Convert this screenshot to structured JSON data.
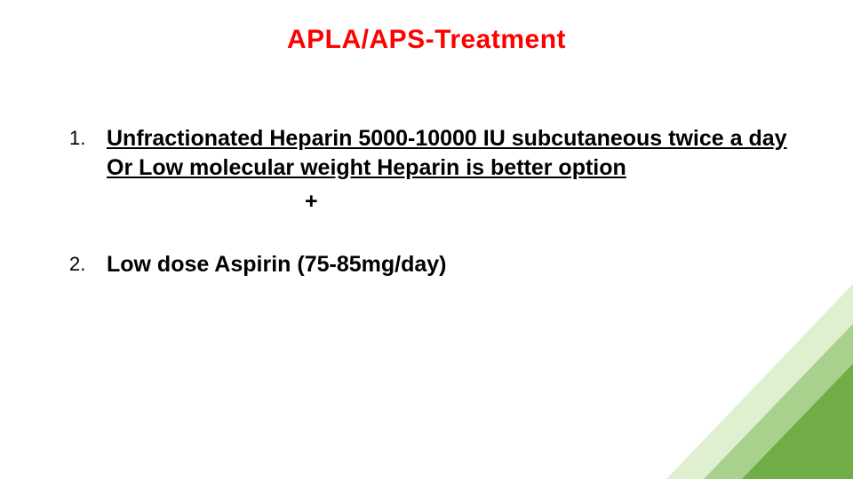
{
  "title": {
    "text": "APLA/APS-Treatment",
    "color": "#ff0000",
    "fontsize": 30
  },
  "list": {
    "items": [
      {
        "number": "1.",
        "text": "Unfractionated Heparin 5000-10000 IU subcutaneous twice a day Or Low molecular weight Heparin is better option",
        "underline": true,
        "fontsize": 25,
        "color": "#000000",
        "separator_after": "+"
      },
      {
        "number": "2.",
        "text": "Low dose Aspirin (75-85mg/day)",
        "underline": false,
        "fontsize": 25,
        "color": "#000000"
      }
    ]
  },
  "decoration": {
    "type": "layered-triangles-bottom-right",
    "colors": [
      "#dff0d0",
      "#a9d18e",
      "#70ad47"
    ]
  },
  "background_color": "#ffffff"
}
